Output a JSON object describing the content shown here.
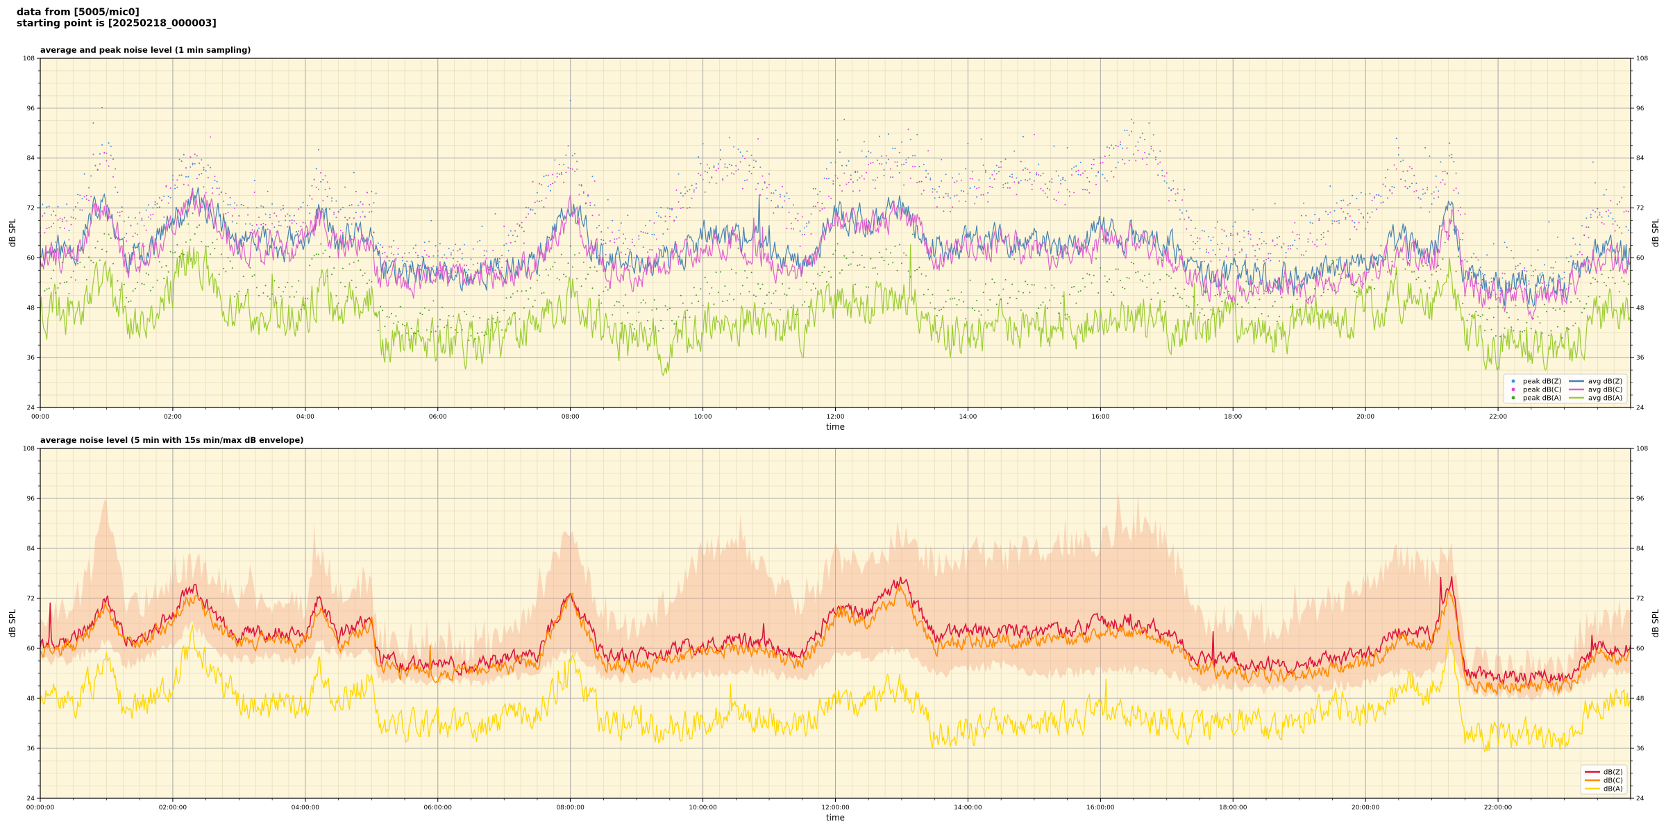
{
  "header": {
    "line1": "data from [5005/mic0]",
    "line2": "starting point is [20250218_000003]"
  },
  "colors": {
    "background": "#fdf6da",
    "avg_z": "#4682b4",
    "avg_c": "#e060d0",
    "avg_a": "#9acd32",
    "peak_z": "#3a8fe0",
    "peak_c": "#e040e0",
    "peak_a": "#4a9a30",
    "env_z": "#dc143c",
    "env_c": "#ff8c00",
    "env_a": "#ffd700",
    "envelope_fill": "#f4a582"
  },
  "chart_data": [
    {
      "type": "line",
      "title": "average and peak noise level (1 min sampling)",
      "xlabel": "time",
      "ylabel": "dB SPL",
      "ylabel_right": "dB SPL",
      "xlim": [
        0,
        24
      ],
      "ylim": [
        24,
        108
      ],
      "yticks": [
        "24",
        "36",
        "48",
        "60",
        "72",
        "84",
        "96",
        "108"
      ],
      "xticks": [
        "00:00",
        "02:00",
        "04:00",
        "06:00",
        "08:00",
        "10:00",
        "12:00",
        "14:00",
        "16:00",
        "18:00",
        "20:00",
        "22:00"
      ],
      "grid": true,
      "legend_position": "lower-right",
      "x": [
        0,
        0.5,
        0.8,
        1,
        1.3,
        1.5,
        2,
        2.3,
        2.6,
        3,
        3.5,
        4,
        4.2,
        4.5,
        5,
        5.1,
        5.5,
        6,
        6.5,
        7,
        7.5,
        8,
        8.5,
        9,
        9.5,
        10,
        10.5,
        11,
        11.5,
        12,
        12.5,
        13,
        13.5,
        14,
        14.5,
        15,
        15.5,
        16,
        16.5,
        17,
        17.5,
        18,
        18.5,
        19,
        19.5,
        20,
        20.5,
        21,
        21.3,
        21.5,
        22,
        22.5,
        23,
        23.5,
        24
      ],
      "series": [
        {
          "name": "avg dB(Z)",
          "values": [
            62,
            62,
            70,
            73,
            60,
            61,
            68,
            74,
            71,
            63,
            63,
            63,
            72,
            63,
            66,
            57,
            56,
            56,
            56,
            57,
            60,
            72,
            59,
            58,
            60,
            65,
            66,
            62,
            58,
            70,
            68,
            72,
            62,
            64,
            65,
            63,
            62,
            66,
            65,
            63,
            56,
            56,
            55,
            55,
            57,
            58,
            64,
            61,
            72,
            55,
            53,
            53,
            53,
            62,
            61
          ]
        },
        {
          "name": "avg dB(C)",
          "values": [
            61,
            60,
            69,
            72,
            59,
            60,
            67,
            73,
            70,
            62,
            62,
            62,
            71,
            62,
            65,
            55,
            55,
            55,
            54,
            56,
            58,
            70,
            57,
            56,
            59,
            63,
            64,
            60,
            56,
            68,
            67,
            71,
            60,
            62,
            64,
            61,
            60,
            64,
            64,
            61,
            54,
            54,
            53,
            53,
            55,
            56,
            62,
            59,
            70,
            53,
            51,
            51,
            51,
            60,
            59
          ]
        },
        {
          "name": "avg dB(A)",
          "values": [
            48,
            47,
            52,
            55,
            45,
            46,
            52,
            62,
            55,
            46,
            45,
            44,
            54,
            46,
            50,
            40,
            40,
            41,
            40,
            41,
            44,
            52,
            43,
            40,
            40,
            44,
            46,
            44,
            42,
            52,
            48,
            52,
            42,
            41,
            44,
            42,
            42,
            46,
            46,
            44,
            42,
            45,
            42,
            44,
            48,
            46,
            52,
            48,
            58,
            41,
            39,
            40,
            38,
            46,
            46
          ]
        },
        {
          "name": "peak dB(Z)",
          "values": [
            69,
            70,
            82,
            88,
            66,
            67,
            78,
            84,
            79,
            70,
            70,
            70,
            82,
            70,
            73,
            62,
            60,
            60,
            60,
            62,
            74,
            86,
            66,
            63,
            70,
            80,
            84,
            77,
            68,
            82,
            82,
            84,
            76,
            78,
            80,
            79,
            78,
            82,
            90,
            80,
            64,
            66,
            62,
            66,
            70,
            72,
            82,
            76,
            86,
            60,
            56,
            57,
            56,
            74,
            70
          ]
        },
        {
          "name": "peak dB(C)",
          "values": [
            67,
            68,
            80,
            86,
            64,
            65,
            76,
            82,
            77,
            68,
            68,
            68,
            80,
            68,
            71,
            60,
            58,
            58,
            58,
            60,
            72,
            84,
            64,
            61,
            68,
            78,
            82,
            75,
            66,
            80,
            80,
            82,
            74,
            76,
            78,
            77,
            76,
            80,
            88,
            78,
            62,
            64,
            60,
            64,
            68,
            70,
            80,
            74,
            84,
            58,
            54,
            55,
            54,
            72,
            68
          ]
        },
        {
          "name": "peak dB(A)",
          "values": [
            56,
            55,
            60,
            64,
            52,
            53,
            60,
            68,
            62,
            53,
            52,
            51,
            62,
            53,
            58,
            46,
            44,
            45,
            44,
            46,
            52,
            60,
            50,
            46,
            46,
            52,
            54,
            52,
            49,
            60,
            56,
            60,
            50,
            48,
            52,
            50,
            50,
            54,
            56,
            52,
            48,
            52,
            48,
            50,
            56,
            54,
            60,
            56,
            66,
            48,
            45,
            46,
            44,
            54,
            53
          ]
        }
      ]
    },
    {
      "type": "line",
      "title": "average noise level (5 min with 15s min/max dB envelope)",
      "xlabel": "time",
      "ylabel": "dB SPL",
      "ylabel_right": "dB SPL",
      "xlim": [
        0,
        24
      ],
      "ylim": [
        24,
        108
      ],
      "yticks": [
        "24",
        "36",
        "48",
        "60",
        "72",
        "84",
        "96",
        "108"
      ],
      "xticks": [
        "00:00:00",
        "02:00:00",
        "04:00:00",
        "06:00:00",
        "08:00:00",
        "10:00:00",
        "12:00:00",
        "14:00:00",
        "16:00:00",
        "18:00:00",
        "20:00:00",
        "22:00:00"
      ],
      "grid": true,
      "legend_position": "lower-right",
      "x": [
        0,
        0.5,
        0.8,
        1,
        1.3,
        1.5,
        2,
        2.3,
        2.6,
        3,
        3.5,
        4,
        4.2,
        4.5,
        5,
        5.1,
        5.5,
        6,
        6.5,
        7,
        7.5,
        8,
        8.5,
        9,
        9.5,
        10,
        10.5,
        11,
        11.5,
        12,
        12.5,
        13,
        13.5,
        14,
        14.5,
        15,
        15.5,
        16,
        16.5,
        17,
        17.5,
        18,
        18.5,
        19,
        19.5,
        20,
        20.5,
        21,
        21.3,
        21.5,
        22,
        22.5,
        23,
        23.5,
        24
      ],
      "series": [
        {
          "name": "dB(Z)",
          "values": [
            61,
            62,
            66,
            72,
            62,
            62,
            68,
            75,
            68,
            63,
            64,
            63,
            72,
            63,
            68,
            58,
            56,
            56,
            56,
            57,
            59,
            74,
            58,
            58,
            59,
            61,
            62,
            61,
            58,
            70,
            68,
            76,
            63,
            64,
            64,
            64,
            64,
            66,
            66,
            64,
            57,
            57,
            56,
            56,
            57,
            58,
            64,
            63,
            77,
            54,
            53,
            53,
            53,
            60,
            60
          ]
        },
        {
          "name": "dB(C)",
          "values": [
            60,
            60,
            65,
            70,
            60,
            61,
            66,
            73,
            66,
            61,
            62,
            61,
            70,
            61,
            66,
            56,
            54,
            54,
            54,
            55,
            57,
            72,
            56,
            56,
            57,
            59,
            60,
            59,
            56,
            68,
            66,
            74,
            60,
            62,
            62,
            62,
            62,
            63,
            64,
            61,
            55,
            54,
            54,
            53,
            55,
            56,
            62,
            61,
            74,
            52,
            51,
            51,
            51,
            58,
            58
          ]
        },
        {
          "name": "dB(A)",
          "values": [
            48,
            47,
            52,
            55,
            45,
            46,
            52,
            62,
            54,
            47,
            46,
            45,
            56,
            46,
            54,
            42,
            41,
            41,
            41,
            42,
            44,
            56,
            42,
            42,
            41,
            42,
            44,
            42,
            41,
            48,
            46,
            52,
            40,
            40,
            42,
            41,
            42,
            45,
            44,
            42,
            40,
            42,
            41,
            42,
            47,
            45,
            52,
            48,
            62,
            40,
            38,
            39,
            38,
            48,
            47
          ]
        }
      ],
      "envelope": {
        "name": "min/max envelope",
        "upper": [
          67,
          70,
          80,
          94,
          70,
          70,
          78,
          80,
          78,
          72,
          72,
          70,
          84,
          72,
          76,
          62,
          60,
          60,
          60,
          62,
          70,
          90,
          66,
          64,
          72,
          82,
          86,
          78,
          70,
          82,
          80,
          86,
          80,
          82,
          82,
          84,
          84,
          86,
          90,
          86,
          66,
          66,
          64,
          68,
          72,
          74,
          82,
          78,
          84,
          58,
          56,
          56,
          56,
          66,
          66
        ],
        "lower": [
          57,
          57,
          60,
          62,
          56,
          57,
          61,
          66,
          60,
          57,
          58,
          57,
          62,
          58,
          60,
          53,
          52,
          52,
          52,
          53,
          54,
          60,
          53,
          53,
          53,
          54,
          55,
          54,
          52,
          58,
          58,
          60,
          54,
          55,
          56,
          54,
          54,
          55,
          55,
          54,
          51,
          51,
          50,
          50,
          51,
          52,
          54,
          54,
          60,
          50,
          49,
          49,
          49,
          54,
          54
        ]
      }
    }
  ]
}
